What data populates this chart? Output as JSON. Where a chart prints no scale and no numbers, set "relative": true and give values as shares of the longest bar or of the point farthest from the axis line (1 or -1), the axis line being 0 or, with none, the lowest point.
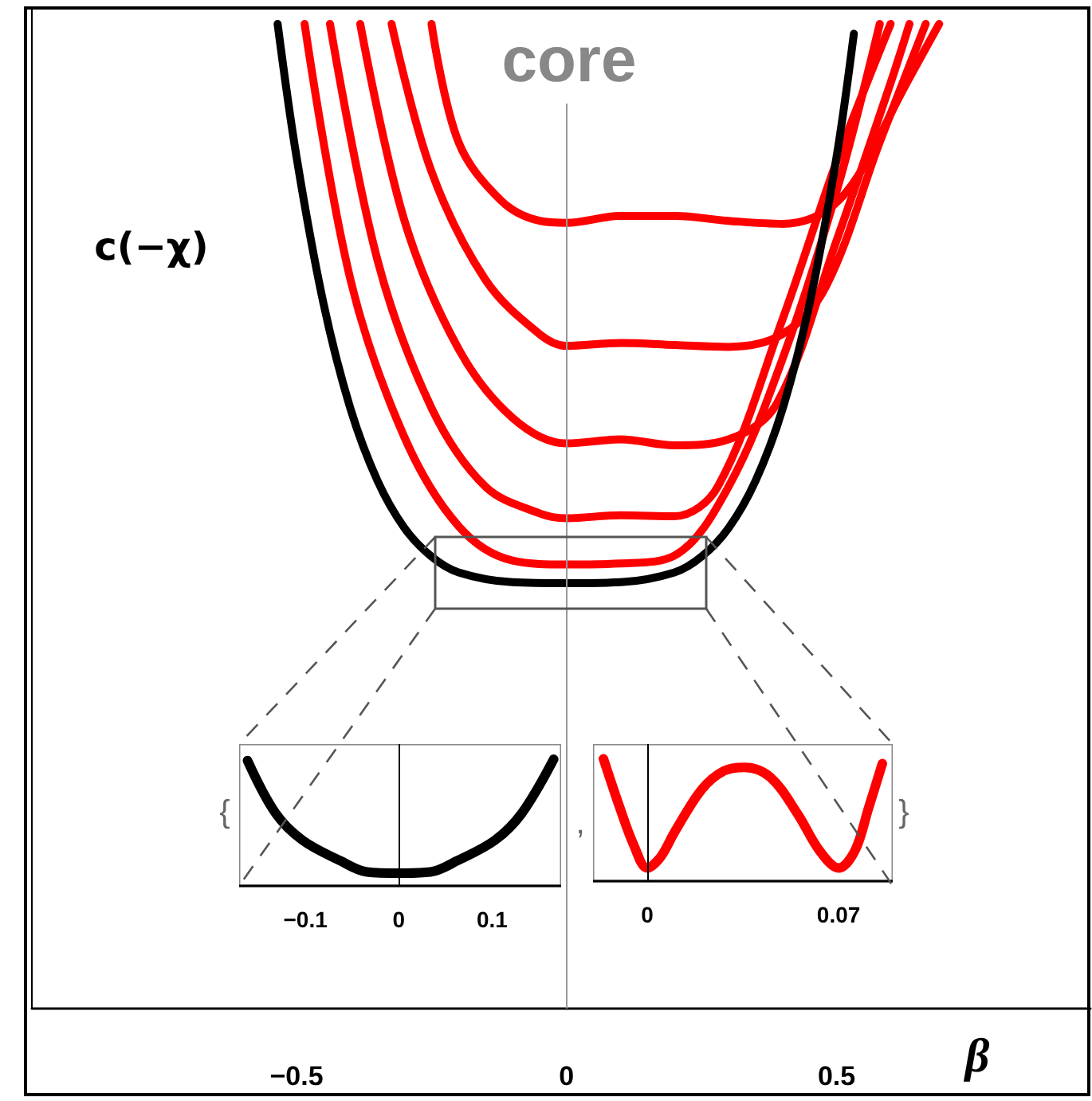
{
  "chart_data": [
    {
      "type": "line",
      "relative": true,
      "title": "core",
      "ylabel": "c(−χ)",
      "xlabel": "β",
      "xlim": [
        -0.99,
        0.97
      ],
      "xticks": [
        {
          "value": -0.5,
          "label": "−0.5"
        },
        0,
        0.5
      ],
      "line_style": "solid",
      "ref_lines": [
        {
          "axis": "x",
          "value": 0,
          "color": "#999999"
        }
      ],
      "series": [
        {
          "color": "#ff0000",
          "x": [
            -0.485,
            -0.4,
            -0.3,
            -0.2,
            -0.1,
            0,
            0.1,
            0.2,
            0.3,
            0.4,
            0.5,
            0.58
          ],
          "values": [
            1,
            0.74,
            0.58,
            0.49,
            0.455,
            0.451,
            0.452,
            0.46,
            0.53,
            0.66,
            0.83,
            1
          ]
        },
        {
          "color": "#ff0000",
          "x": [
            -0.438,
            -0.35,
            -0.25,
            -0.15,
            -0.05,
            0,
            0.1,
            0.2,
            0.28,
            0.4,
            0.5,
            0.6
          ],
          "values": [
            1,
            0.76,
            0.61,
            0.53,
            0.503,
            0.498,
            0.501,
            0.5,
            0.53,
            0.7,
            0.86,
            1
          ]
        },
        {
          "color": "#ff0000",
          "x": [
            -0.382,
            -0.3,
            -0.2,
            -0.1,
            0,
            0.1,
            0.2,
            0.3,
            0.39,
            0.5,
            0.6,
            0.635
          ],
          "values": [
            1,
            0.8,
            0.67,
            0.6,
            0.574,
            0.578,
            0.572,
            0.578,
            0.615,
            0.78,
            0.94,
            1
          ]
        },
        {
          "color": "#ff0000",
          "x": [
            -0.324,
            -0.25,
            -0.15,
            -0.05,
            0,
            0.1,
            0.2,
            0.3,
            0.4,
            0.48,
            0.58,
            0.665
          ],
          "values": [
            1,
            0.85,
            0.74,
            0.685,
            0.673,
            0.676,
            0.674,
            0.672,
            0.685,
            0.733,
            0.88,
            1
          ]
        },
        {
          "color": "#ff0000",
          "x": [
            -0.25,
            -0.2,
            -0.12,
            -0.05,
            0,
            0.1,
            0.2,
            0.3,
            0.4,
            0.48,
            0.54,
            0.62,
            0.69
          ],
          "values": [
            1,
            0.88,
            0.82,
            0.8,
            0.798,
            0.805,
            0.805,
            0.8,
            0.797,
            0.81,
            0.846,
            0.93,
            1
          ]
        },
        {
          "color": "#000000",
          "x": [
            -0.535,
            -0.5,
            -0.45,
            -0.4,
            -0.35,
            -0.3,
            -0.25,
            -0.2,
            -0.1,
            0,
            0.1,
            0.2,
            0.25,
            0.3,
            0.35,
            0.4,
            0.45,
            0.5,
            0.532
          ],
          "values": [
            1,
            0.865,
            0.716,
            0.609,
            0.536,
            0.488,
            0.459,
            0.443,
            0.433,
            0.432,
            0.433,
            0.443,
            0.459,
            0.488,
            0.536,
            0.609,
            0.716,
            0.865,
            0.99
          ]
        }
      ],
      "annotations": [
        "{",
        ",",
        "}"
      ]
    },
    {
      "type": "line",
      "relative": true,
      "xlim": [
        -0.171,
        0.174
      ],
      "xticks": [
        {
          "value": -0.1,
          "label": "−0.1"
        },
        0,
        0.1
      ],
      "ref_lines": [
        {
          "axis": "x",
          "value": 0,
          "color": "#000000"
        }
      ],
      "series": [
        {
          "color": "#000000",
          "x": [
            -0.162,
            -0.132,
            -0.103,
            -0.063,
            -0.034,
            0,
            0.034,
            0.063,
            0.103,
            0.132,
            0.166
          ],
          "values": [
            0.99,
            0.575,
            0.36,
            0.2,
            0.11,
            0.1,
            0.11,
            0.2,
            0.36,
            0.575,
            1
          ]
        }
      ]
    },
    {
      "type": "line",
      "relative": true,
      "xlim": [
        -0.0198,
        0.0898
      ],
      "xticks": [
        0,
        0.07
      ],
      "ref_lines": [
        {
          "axis": "x",
          "value": 0,
          "color": "#000000"
        }
      ],
      "series": [
        {
          "color": "#ff0000",
          "x": [
            -0.016,
            -0.01,
            -0.005,
            0,
            0.005,
            0.01,
            0.02,
            0.028,
            0.0356,
            0.045,
            0.055,
            0.063,
            0.07,
            0.076,
            0.081,
            0.086
          ],
          "values": [
            1,
            0.6,
            0.3,
            0.107,
            0.2,
            0.4,
            0.75,
            0.9,
            0.93,
            0.85,
            0.55,
            0.25,
            0.107,
            0.25,
            0.6,
            0.96
          ]
        }
      ]
    }
  ]
}
